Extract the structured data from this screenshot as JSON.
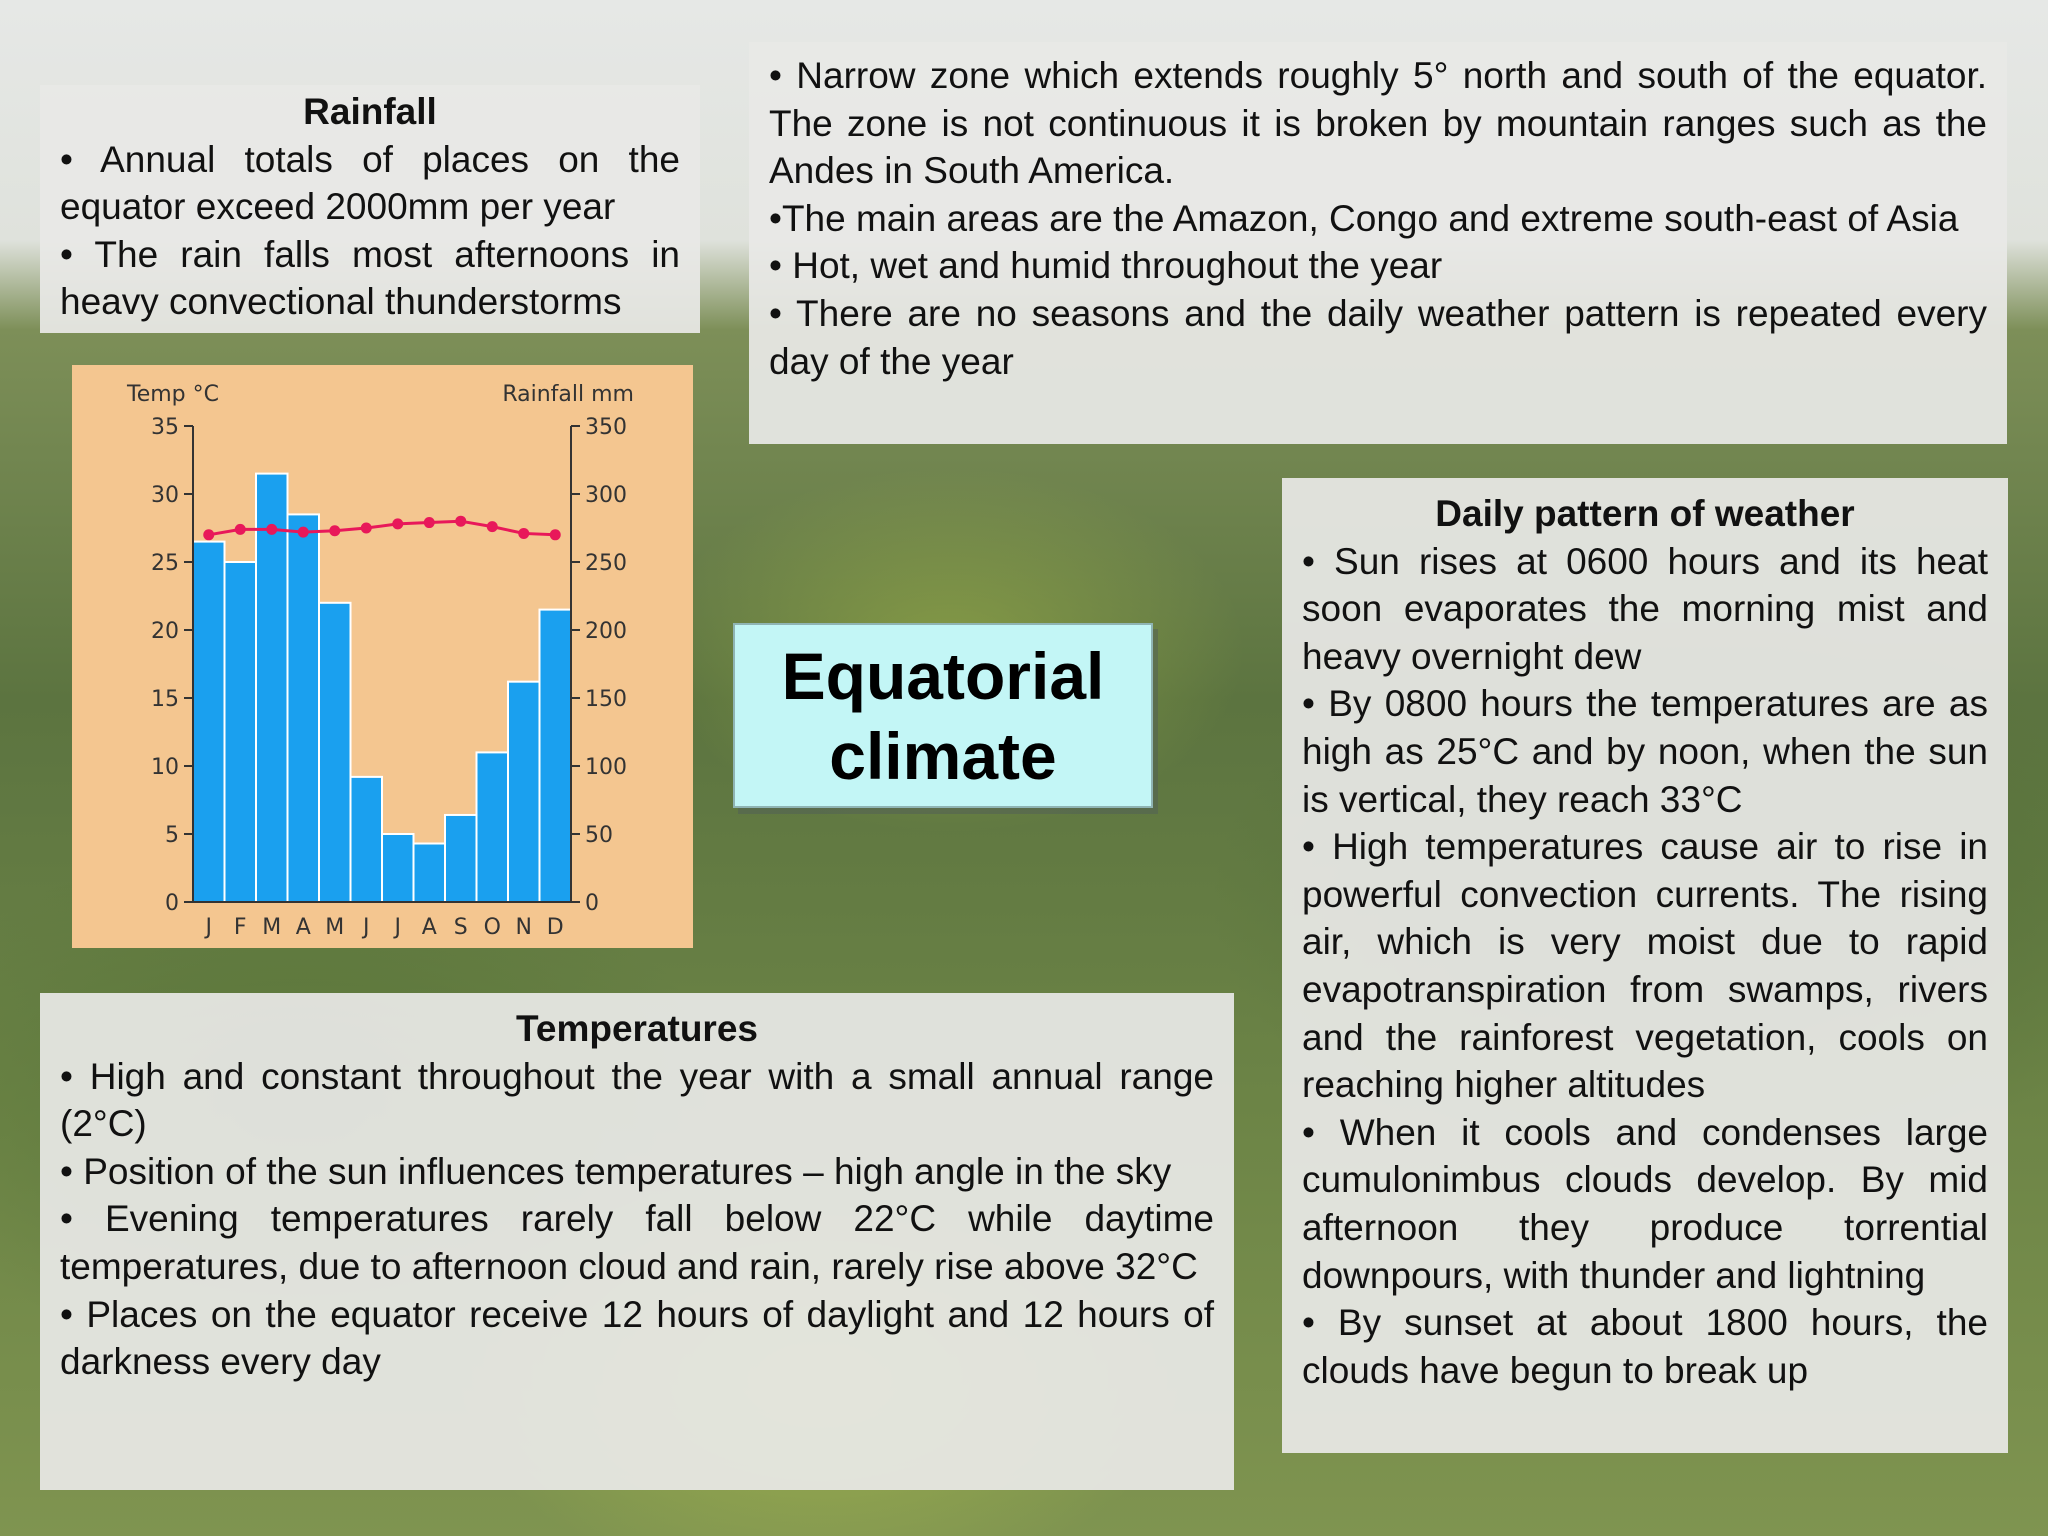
{
  "rainfall": {
    "heading": "Rainfall",
    "bullets": [
      "•   Annual totals of places on the equator exceed 2000mm per year",
      "•  The rain falls most afternoons in heavy convectional thunderstorms"
    ]
  },
  "zone": {
    "bullets": [
      "•   Narrow zone which extends roughly 5° north and south of the equator.  The zone is not continuous it is broken by mountain ranges such as the Andes in South America.",
      "•The main areas are the Amazon, Congo and extreme south-east of Asia",
      "•  Hot, wet and humid throughout the year",
      "•   There are no seasons and the daily weather pattern is repeated every day of the year"
    ]
  },
  "title": {
    "line1": "Equatorial",
    "line2": "climate"
  },
  "daily": {
    "heading": "Daily pattern of weather",
    "bullets": [
      "•  Sun rises at 0600 hours and its heat soon evaporates the morning mist and heavy overnight dew",
      "•  By 0800 hours the temperatures are as high as 25°C and by noon, when the sun is vertical, they reach 33°C",
      "•   High temperatures cause air to rise in powerful convection currents.   The rising air, which is very moist due to rapid evapotranspiration from swamps, rivers and the rainforest vegetation, cools on reaching higher altitudes",
      "•   When it cools and condenses large cumulonimbus clouds develop.   By mid afternoon they produce torrential downpours, with thunder and lightning",
      "•  By sunset at about 1800 hours, the clouds have begun to break up"
    ]
  },
  "temperatures": {
    "heading": "Temperatures",
    "bullets": [
      "•   High and constant throughout the year with a small annual range (2°C)",
      "•  Position of the sun influences temperatures – high angle in the sky",
      "•   Evening temperatures rarely fall below 22°C while daytime temperatures, due to afternoon cloud and rain, rarely rise above 32°C",
      "•   Places on the equator receive 12 hours of daylight and 12 hours of darkness every day"
    ]
  },
  "chart_data": {
    "type": "bar",
    "categories": [
      "J",
      "F",
      "M",
      "A",
      "M",
      "J",
      "J",
      "A",
      "S",
      "O",
      "N",
      "D"
    ],
    "ylabel_left": "Temp °C",
    "ylabel_right": "Rainfall mm",
    "ylim_left": [
      0,
      35
    ],
    "ylim_right": [
      0,
      350
    ],
    "left_ticks": [
      0,
      5,
      10,
      15,
      20,
      25,
      30,
      35
    ],
    "right_ticks": [
      0,
      50,
      100,
      150,
      200,
      250,
      300,
      350
    ],
    "series": [
      {
        "kind": "bar",
        "axis": "right",
        "values": [
          265,
          250,
          315,
          285,
          220,
          92,
          50,
          43,
          64,
          110,
          162,
          215
        ],
        "color": "#1aa0ef"
      },
      {
        "kind": "line",
        "axis": "left",
        "values": [
          27,
          27.4,
          27.4,
          27.2,
          27.3,
          27.5,
          27.8,
          27.9,
          28,
          27.6,
          27.1,
          27
        ],
        "color": "#e8185a"
      }
    ],
    "colors": {
      "background": "#f4c690",
      "axis": "#333333"
    }
  }
}
